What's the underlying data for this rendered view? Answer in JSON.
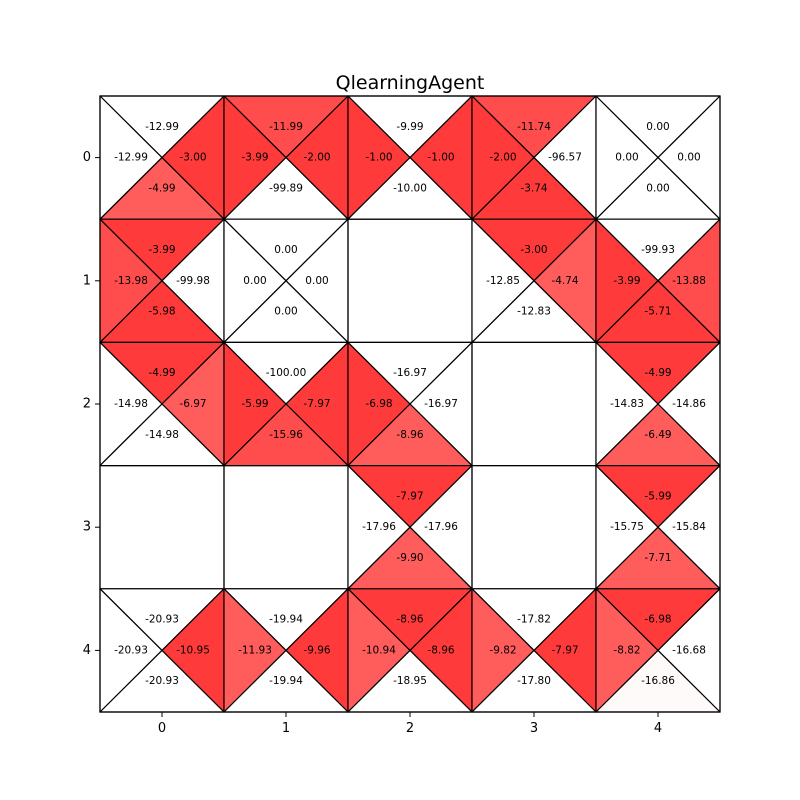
{
  "chart_data": {
    "type": "heatmap",
    "title": "QlearningAgent",
    "xlabel": "",
    "ylabel": "",
    "x_ticks": [
      "0",
      "1",
      "2",
      "3",
      "4"
    ],
    "y_ticks": [
      "0",
      "1",
      "2",
      "3",
      "4"
    ],
    "triangle_order": [
      "top",
      "left",
      "right",
      "bottom"
    ],
    "color_map": {
      "zero": "#ffffff",
      "negative": "#ff0000"
    },
    "cells": [
      {
        "row": 0,
        "col": 0,
        "values": [
          "-12.99",
          "-12.99",
          "-3.00",
          "-4.99"
        ],
        "fill": [
          "#ffffff",
          "#ffffff",
          "#ff3a3a",
          "#ff5c5c"
        ]
      },
      {
        "row": 0,
        "col": 1,
        "values": [
          "-11.99",
          "-3.99",
          "-2.00",
          "-99.89"
        ],
        "fill": [
          "#ff4d4d",
          "#ff3a3a",
          "#ff3a3a",
          "#ffffff"
        ]
      },
      {
        "row": 0,
        "col": 2,
        "values": [
          "-9.99",
          "-1.00",
          "-1.00",
          "-10.00"
        ],
        "fill": [
          "#ffffff",
          "#ff3a3a",
          "#ff3a3a",
          "#ffffff"
        ]
      },
      {
        "row": 0,
        "col": 3,
        "values": [
          "-11.74",
          "-2.00",
          "-96.57",
          "-3.74"
        ],
        "fill": [
          "#ff4d4d",
          "#ff3a3a",
          "#ffffff",
          "#ff3a3a"
        ]
      },
      {
        "row": 0,
        "col": 4,
        "values": [
          "0.00",
          "0.00",
          "0.00",
          "0.00"
        ],
        "fill": [
          "#ffffff",
          "#ffffff",
          "#ffffff",
          "#ffffff"
        ]
      },
      {
        "row": 1,
        "col": 0,
        "values": [
          "-3.99",
          "-13.98",
          "-99.98",
          "-5.98"
        ],
        "fill": [
          "#ff3a3a",
          "#ff4d4d",
          "#ffffff",
          "#ff3a3a"
        ]
      },
      {
        "row": 1,
        "col": 1,
        "values": [
          "0.00",
          "0.00",
          "0.00",
          "0.00"
        ],
        "fill": [
          "#ffffff",
          "#ffffff",
          "#ffffff",
          "#ffffff"
        ]
      },
      {
        "row": 1,
        "col": 2,
        "values": null,
        "fill": null
      },
      {
        "row": 1,
        "col": 3,
        "values": [
          "-3.00",
          "-12.85",
          "-4.74",
          "-12.83"
        ],
        "fill": [
          "#ff3a3a",
          "#ffffff",
          "#ff5c5c",
          "#ffffff"
        ]
      },
      {
        "row": 1,
        "col": 4,
        "values": [
          "-99.93",
          "-3.99",
          "-13.88",
          "-5.71"
        ],
        "fill": [
          "#ffffff",
          "#ff3a3a",
          "#ff4d4d",
          "#ff3a3a"
        ]
      },
      {
        "row": 2,
        "col": 0,
        "values": [
          "-4.99",
          "-14.98",
          "-6.97",
          "-14.98"
        ],
        "fill": [
          "#ff3a3a",
          "#ffffff",
          "#ff5c5c",
          "#ffffff"
        ]
      },
      {
        "row": 2,
        "col": 1,
        "values": [
          "-100.00",
          "-5.99",
          "-7.97",
          "-15.96"
        ],
        "fill": [
          "#ffffff",
          "#ff3a3a",
          "#ff3a3a",
          "#ff4d4d"
        ]
      },
      {
        "row": 2,
        "col": 2,
        "values": [
          "-16.97",
          "-6.98",
          "-16.97",
          "-8.96"
        ],
        "fill": [
          "#ffffff",
          "#ff3a3a",
          "#ffffff",
          "#ff5c5c"
        ]
      },
      {
        "row": 2,
        "col": 3,
        "values": null,
        "fill": null
      },
      {
        "row": 2,
        "col": 4,
        "values": [
          "-4.99",
          "-14.83",
          "-14.86",
          "-6.49"
        ],
        "fill": [
          "#ff3a3a",
          "#ffffff",
          "#ffffff",
          "#ff5c5c"
        ]
      },
      {
        "row": 3,
        "col": 0,
        "values": null,
        "fill": null
      },
      {
        "row": 3,
        "col": 1,
        "values": null,
        "fill": null
      },
      {
        "row": 3,
        "col": 2,
        "values": [
          "-7.97",
          "-17.96",
          "-17.96",
          "-9.90"
        ],
        "fill": [
          "#ff3a3a",
          "#ffffff",
          "#ffffff",
          "#ff5c5c"
        ]
      },
      {
        "row": 3,
        "col": 3,
        "values": null,
        "fill": null
      },
      {
        "row": 3,
        "col": 4,
        "values": [
          "-5.99",
          "-15.75",
          "-15.84",
          "-7.71"
        ],
        "fill": [
          "#ff3a3a",
          "#ffffff",
          "#ffffff",
          "#ff5c5c"
        ]
      },
      {
        "row": 4,
        "col": 0,
        "values": [
          "-20.93",
          "-20.93",
          "-10.95",
          "-20.93"
        ],
        "fill": [
          "#ffffff",
          "#ffffff",
          "#ff3a3a",
          "#ffffff"
        ]
      },
      {
        "row": 4,
        "col": 1,
        "values": [
          "-19.94",
          "-11.93",
          "-9.96",
          "-19.94"
        ],
        "fill": [
          "#ffffff",
          "#ff5c5c",
          "#ff3a3a",
          "#ffffff"
        ]
      },
      {
        "row": 4,
        "col": 2,
        "values": [
          "-8.96",
          "-10.94",
          "-8.96",
          "-18.95"
        ],
        "fill": [
          "#ff3a3a",
          "#ff5c5c",
          "#ff3a3a",
          "#ffffff"
        ]
      },
      {
        "row": 4,
        "col": 3,
        "values": [
          "-17.82",
          "-9.82",
          "-7.97",
          "-17.80"
        ],
        "fill": [
          "#ffffff",
          "#ff5c5c",
          "#ff3a3a",
          "#ffffff"
        ]
      },
      {
        "row": 4,
        "col": 4,
        "values": [
          "-6.98",
          "-8.82",
          "-16.68",
          "-16.86"
        ],
        "fill": [
          "#ff3a3a",
          "#ff5c5c",
          "#ffffff",
          "#fffafa"
        ]
      }
    ]
  }
}
